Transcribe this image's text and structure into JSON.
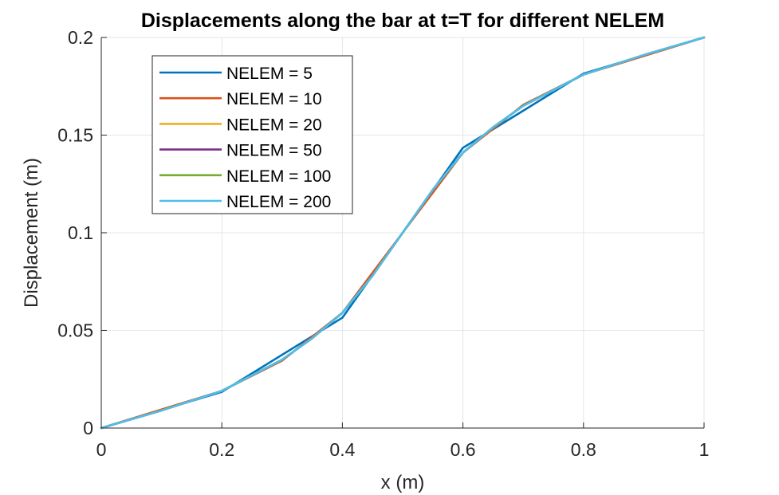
{
  "chart_data": {
    "type": "line",
    "title": "Displacements along the bar at t=T for different NELEM",
    "xlabel": "x (m)",
    "ylabel": "Displacement (m)",
    "xlim": [
      0,
      1
    ],
    "ylim": [
      0,
      0.2
    ],
    "xticks": [
      0,
      0.2,
      0.4,
      0.6,
      0.8,
      1
    ],
    "xtick_labels": [
      "0",
      "0.2",
      "0.4",
      "0.6",
      "0.8",
      "1"
    ],
    "yticks": [
      0,
      0.05,
      0.1,
      0.15,
      0.2
    ],
    "ytick_labels": [
      "0",
      "0.05",
      "0.1",
      "0.15",
      "0.2"
    ],
    "grid": true,
    "legend_position": "top-left",
    "series": [
      {
        "name": "NELEM = 5",
        "color": "#0072BD",
        "x": [
          0,
          0.2,
          0.4,
          0.6,
          0.8,
          1.0
        ],
        "y": [
          0,
          0.0185,
          0.0565,
          0.1435,
          0.1815,
          0.2
        ]
      },
      {
        "name": "NELEM = 10",
        "color": "#D95319",
        "x": [
          0,
          0.1,
          0.2,
          0.3,
          0.4,
          0.5,
          0.6,
          0.7,
          0.8,
          0.9,
          1.0
        ],
        "y": [
          0,
          0.0095,
          0.019,
          0.0345,
          0.059,
          0.1,
          0.141,
          0.1655,
          0.181,
          0.1905,
          0.2
        ]
      },
      {
        "name": "NELEM = 20",
        "color": "#EDB120",
        "x": [
          0,
          0.1,
          0.2,
          0.3,
          0.35,
          0.4,
          0.45,
          0.5,
          0.55,
          0.6,
          0.65,
          0.7,
          0.8,
          0.9,
          1.0
        ],
        "y": [
          0,
          0.009,
          0.019,
          0.035,
          0.046,
          0.059,
          0.078,
          0.1,
          0.122,
          0.141,
          0.154,
          0.165,
          0.181,
          0.191,
          0.2
        ]
      },
      {
        "name": "NELEM = 50",
        "color": "#7E2F8E",
        "x": [
          0,
          0.1,
          0.2,
          0.3,
          0.35,
          0.4,
          0.45,
          0.5,
          0.55,
          0.6,
          0.65,
          0.7,
          0.8,
          0.9,
          1.0
        ],
        "y": [
          0,
          0.009,
          0.019,
          0.035,
          0.046,
          0.059,
          0.078,
          0.1,
          0.122,
          0.141,
          0.154,
          0.165,
          0.181,
          0.191,
          0.2
        ]
      },
      {
        "name": "NELEM = 100",
        "color": "#77AC30",
        "x": [
          0,
          0.1,
          0.2,
          0.3,
          0.35,
          0.4,
          0.45,
          0.5,
          0.55,
          0.6,
          0.65,
          0.7,
          0.8,
          0.9,
          1.0
        ],
        "y": [
          0,
          0.009,
          0.019,
          0.035,
          0.046,
          0.059,
          0.078,
          0.1,
          0.122,
          0.141,
          0.154,
          0.165,
          0.181,
          0.191,
          0.2
        ]
      },
      {
        "name": "NELEM = 200",
        "color": "#4DBEEE",
        "x": [
          0,
          0.1,
          0.2,
          0.3,
          0.35,
          0.4,
          0.45,
          0.5,
          0.55,
          0.6,
          0.65,
          0.7,
          0.8,
          0.9,
          1.0
        ],
        "y": [
          0,
          0.009,
          0.019,
          0.035,
          0.046,
          0.059,
          0.078,
          0.1,
          0.122,
          0.141,
          0.154,
          0.165,
          0.181,
          0.191,
          0.2
        ]
      }
    ]
  }
}
